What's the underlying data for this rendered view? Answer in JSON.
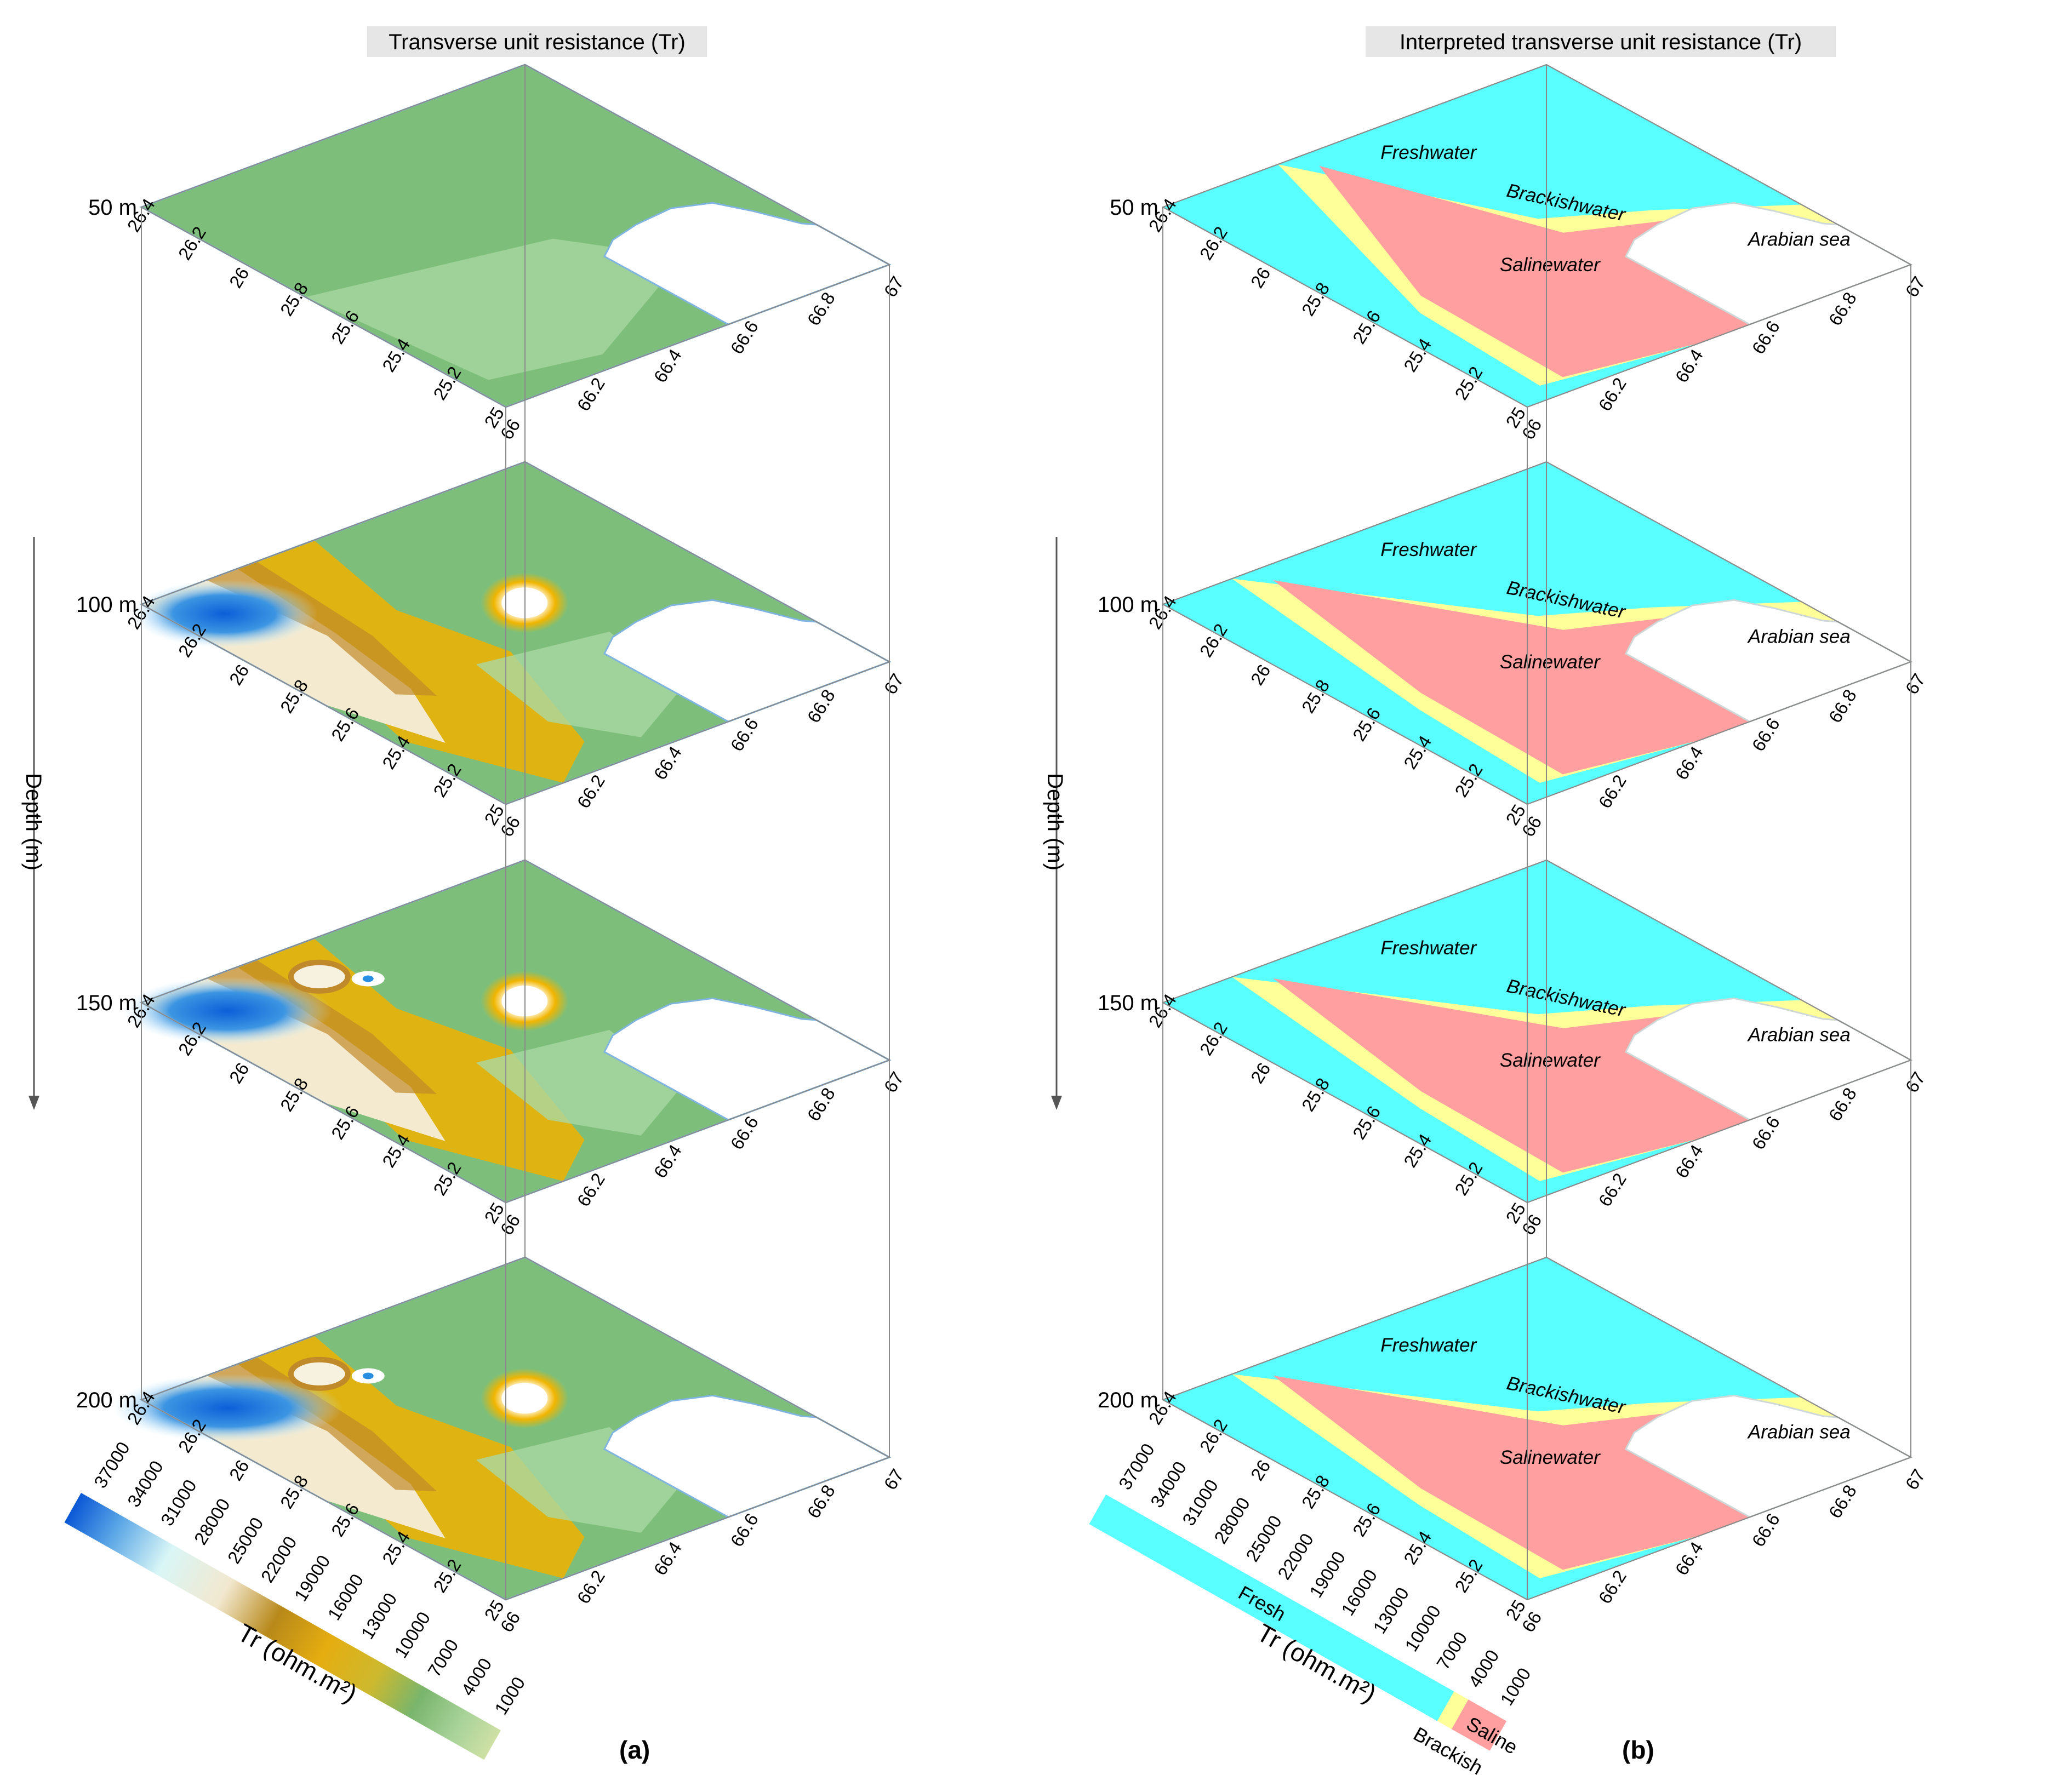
{
  "panels": [
    {
      "id": "a",
      "title": "Transverse unit resistance (Tr)",
      "label": "(a)",
      "depth_axis_label": "Depth (m)",
      "legend": {
        "unit_label": "Tr (ohm.m²)",
        "values": [
          "37000",
          "34000",
          "31000",
          "28000",
          "25000",
          "22000",
          "19000",
          "16000",
          "13000",
          "10000",
          "7000",
          "4000",
          "1000"
        ],
        "gradient": [
          "#0a57d6",
          "#5aa6e6",
          "#d9f6f6",
          "#f2e8cf",
          "#c9a55a",
          "#b8891a",
          "#e5ad10",
          "#cdb92e",
          "#9cbe6a",
          "#79b56c",
          "#a8d39a",
          "#cfe0a4"
        ]
      }
    },
    {
      "id": "b",
      "title": "Interpreted transverse unit resistance (Tr)",
      "label": "(b)",
      "depth_axis_label": "Depth (m)",
      "legend": {
        "unit_label": "Tr (ohm.m²)",
        "values": [
          "37000",
          "34000",
          "31000",
          "28000",
          "25000",
          "22000",
          "19000",
          "16000",
          "13000",
          "10000",
          "7000",
          "4000",
          "1000"
        ],
        "classes": [
          {
            "name": "Fresh",
            "color": "#59ffff"
          },
          {
            "name": "Brackish",
            "color": "#ffff9a"
          },
          {
            "name": "Saline",
            "color": "#ff9f9f"
          }
        ]
      }
    }
  ],
  "slices": [
    {
      "depth_label": "50 m",
      "zones": {
        "fresh": "Freshwater",
        "brackish": "Brackishwater",
        "saline": "Salinewater",
        "sea": "Arabian sea"
      }
    },
    {
      "depth_label": "100 m",
      "zones": {
        "fresh": "Freshwater",
        "brackish": "Brackishwater",
        "saline": "Salinewater",
        "sea": "Arabian sea"
      }
    },
    {
      "depth_label": "150 m",
      "zones": {
        "fresh": "Freshwater",
        "brackish": "Brackishwater",
        "saline": "Salinewater",
        "sea": "Arabian sea"
      }
    },
    {
      "depth_label": "200 m",
      "zones": {
        "fresh": "Freshwater",
        "brackish": "Brackishwater",
        "saline": "Salinewater",
        "sea": "Arabian sea"
      }
    }
  ],
  "lat_ticks": [
    "26.4",
    "26.2",
    "26",
    "25.8",
    "25.6",
    "25.4",
    "25.2",
    "25"
  ],
  "lon_ticks": [
    "66",
    "66.2",
    "66.4",
    "66.6",
    "66.8",
    "67"
  ],
  "colors": {
    "fresh": "#59ffff",
    "brackish": "#ffff9a",
    "saline": "#ff9f9f",
    "green_base": "#7dbf7a",
    "green_light": "#a9d8a4",
    "orange": "#f0b000",
    "brown": "#c08a2a",
    "blue": "#1f7fde",
    "white": "#ffffff",
    "frame": "#8a8a8a",
    "coast": "#7fb3e0"
  }
}
